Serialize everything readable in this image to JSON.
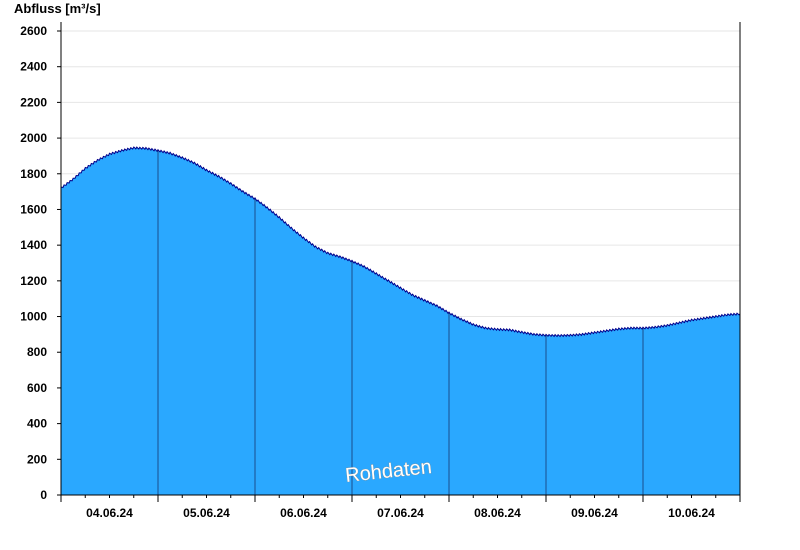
{
  "chart_data": {
    "type": "area",
    "ylabel": "Abfluss [m³/s]",
    "ylim": [
      0,
      2600
    ],
    "yticks": [
      0,
      200,
      400,
      600,
      800,
      1000,
      1200,
      1400,
      1600,
      1800,
      2000,
      2200,
      2400,
      2600
    ],
    "xlim": [
      "04.06.24 00:00",
      "11.06.24 00:00"
    ],
    "xticks": [
      "04.06.24",
      "05.06.24",
      "06.06.24",
      "07.06.24",
      "08.06.24",
      "09.06.24",
      "10.06.24"
    ],
    "grid": true,
    "fill_color": "#2aa8ff",
    "line_color": "#00008b",
    "watermark": "Rohdaten",
    "series": [
      {
        "x": [
          "04.06.24 00:00",
          "04.06.24 03:00",
          "04.06.24 06:00",
          "04.06.24 09:00",
          "04.06.24 12:00",
          "04.06.24 15:00",
          "04.06.24 18:00",
          "04.06.24 21:00",
          "05.06.24 00:00",
          "05.06.24 03:00",
          "05.06.24 06:00",
          "05.06.24 09:00",
          "05.06.24 12:00",
          "05.06.24 15:00",
          "05.06.24 18:00",
          "05.06.24 21:00",
          "06.06.24 00:00",
          "06.06.24 03:00",
          "06.06.24 06:00",
          "06.06.24 09:00",
          "06.06.24 12:00",
          "06.06.24 15:00",
          "06.06.24 18:00",
          "06.06.24 21:00",
          "07.06.24 00:00",
          "07.06.24 03:00",
          "07.06.24 06:00",
          "07.06.24 09:00",
          "07.06.24 12:00",
          "07.06.24 15:00",
          "07.06.24 18:00",
          "07.06.24 21:00",
          "08.06.24 00:00",
          "08.06.24 03:00",
          "08.06.24 06:00",
          "08.06.24 09:00",
          "08.06.24 12:00",
          "08.06.24 15:00",
          "08.06.24 18:00",
          "08.06.24 21:00",
          "09.06.24 00:00",
          "09.06.24 03:00",
          "09.06.24 06:00",
          "09.06.24 09:00",
          "09.06.24 12:00",
          "09.06.24 15:00",
          "09.06.24 18:00",
          "09.06.24 21:00",
          "10.06.24 00:00",
          "10.06.24 03:00",
          "10.06.24 06:00",
          "10.06.24 09:00",
          "10.06.24 12:00",
          "10.06.24 15:00",
          "10.06.24 18:00",
          "10.06.24 21:00",
          "11.06.24 00:00"
        ],
        "values": [
          1720,
          1770,
          1830,
          1875,
          1910,
          1930,
          1945,
          1942,
          1930,
          1915,
          1890,
          1860,
          1820,
          1785,
          1745,
          1700,
          1660,
          1610,
          1555,
          1495,
          1440,
          1390,
          1355,
          1335,
          1310,
          1280,
          1240,
          1200,
          1160,
          1120,
          1090,
          1060,
          1020,
          985,
          955,
          935,
          928,
          925,
          912,
          900,
          895,
          893,
          895,
          900,
          910,
          920,
          930,
          935,
          935,
          940,
          950,
          965,
          980,
          990,
          1000,
          1010,
          1015
        ]
      }
    ]
  }
}
